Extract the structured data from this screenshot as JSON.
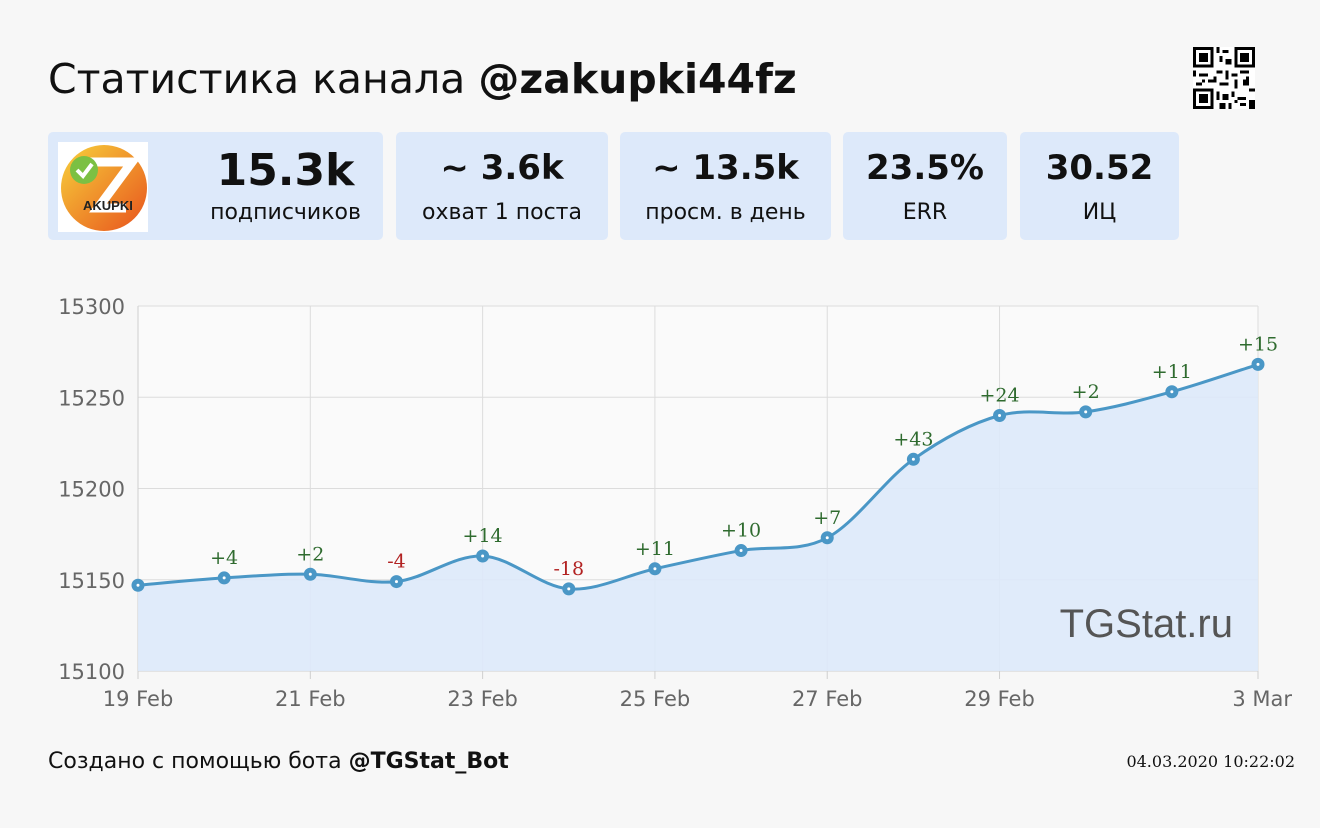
{
  "header": {
    "title_prefix": "Статистика канала",
    "channel": "@zakupki44fz"
  },
  "logo": {
    "text": "AKUPKI"
  },
  "stats": [
    {
      "value": "15.3k",
      "label": "подписчиков"
    },
    {
      "value": "~ 3.6k",
      "label": "охват 1 поста"
    },
    {
      "value": "~ 13.5k",
      "label": "просм. в день"
    },
    {
      "value": "23.5%",
      "label": "ERR"
    },
    {
      "value": "30.52",
      "label": "ИЦ"
    }
  ],
  "watermark": "TGStat.ru",
  "footer": {
    "prefix": "Создано с помощью бота",
    "bot": "@TGStat_Bot",
    "timestamp": "04.03.2020 10:22:02"
  },
  "colors": {
    "line": "#4a97c6",
    "fill": "#dde9fa",
    "positive": "#2f6b2f",
    "negative": "#b22222",
    "card": "#dde9fa"
  },
  "chart_data": {
    "type": "area",
    "x": [
      "19 Feb",
      "20 Feb",
      "21 Feb",
      "22 Feb",
      "23 Feb",
      "24 Feb",
      "25 Feb",
      "26 Feb",
      "27 Feb",
      "28 Feb",
      "29 Feb",
      "1 Mar",
      "2 Mar",
      "3 Mar"
    ],
    "values": [
      15147,
      15151,
      15153,
      15149,
      15163,
      15145,
      15156,
      15166,
      15173,
      15216,
      15240,
      15242,
      15253,
      15268
    ],
    "deltas": [
      "",
      "+4",
      "+2",
      "-4",
      "+14",
      "-18",
      "+11",
      "+10",
      "+7",
      "+43",
      "+24",
      "+2",
      "+11",
      "+15"
    ],
    "x_tick_labels": [
      "19 Feb",
      "21 Feb",
      "23 Feb",
      "25 Feb",
      "27 Feb",
      "29 Feb",
      "3 Mar"
    ],
    "y_ticks": [
      15100,
      15150,
      15200,
      15250,
      15300
    ],
    "ylim": [
      15100,
      15300
    ],
    "grid": true,
    "legend": "none"
  }
}
